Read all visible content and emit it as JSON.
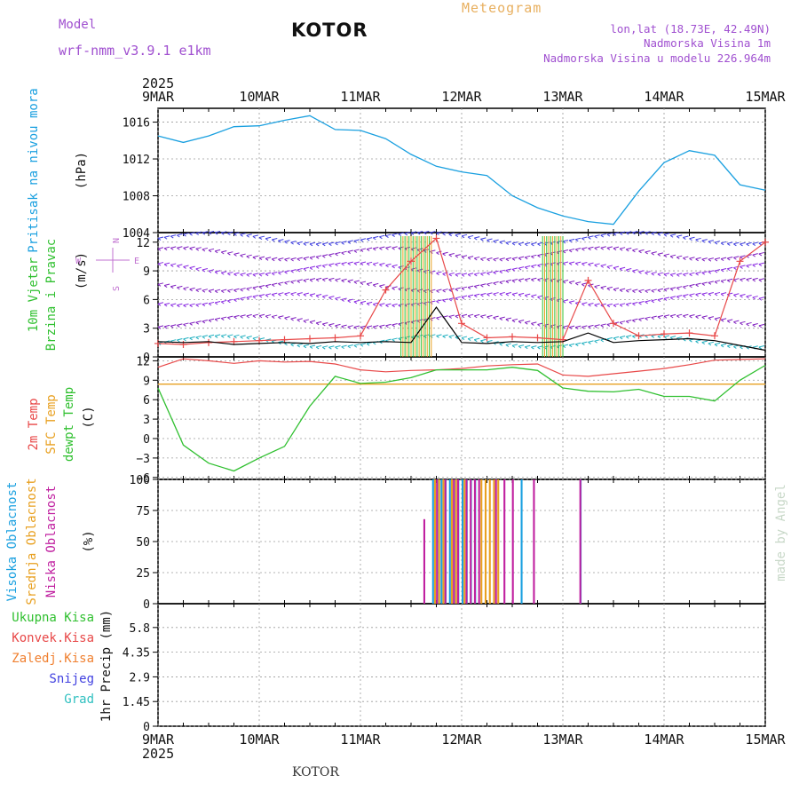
{
  "header": {
    "model_label": "Model",
    "model_name": "wrf-nmm_v3.9.1 e1km",
    "station": "KOTOR",
    "meteogram_label": "Meteogram",
    "lonlat": "lon,lat (18.73E, 42.49N)",
    "altitude": "Nadmorska Visina 1m",
    "model_altitude": "Nadmorska Visina u modelu 226.964m"
  },
  "footer": {
    "station": "KOTOR"
  },
  "watermark": "made by Angel",
  "colors": {
    "pressure": "#1aa0e0",
    "temp2m": "#e84848",
    "sfc": "#e8a020",
    "dewpt": "#30c030",
    "wind_speed": "#000000",
    "gust": "#e84848",
    "high_cloud": "#1aa0e0",
    "mid_cloud": "#e8a020",
    "low_cloud": "#c020a0",
    "total_precip": "#30c030",
    "conv_precip": "#e84848",
    "freezing": "#f08030",
    "snow": "#4040e0",
    "hail": "#30c0c0"
  },
  "chart_data": [
    {
      "type": "line",
      "panel": "pressure",
      "ylabel_lines": [
        "Pritisak na nivou mora",
        "(hPa)"
      ],
      "ylim": [
        1004,
        1017.5
      ],
      "yticks": [
        "1016",
        "1012",
        "1008",
        "1004"
      ],
      "xticks": [
        "9MAR",
        "10MAR",
        "11MAR",
        "12MAR",
        "13MAR",
        "14MAR",
        "15MAR"
      ],
      "xticks_year": "2025",
      "x_days": [
        0,
        0.25,
        0.5,
        0.75,
        1,
        1.25,
        1.5,
        1.75,
        2,
        2.25,
        2.5,
        2.75,
        3,
        3.25,
        3.5,
        3.75,
        4,
        4.25,
        4.5,
        4.75,
        5,
        5.25,
        5.5,
        5.75,
        6
      ],
      "series": [
        {
          "values": [
            1014.5,
            1013.8,
            1014.5,
            1015.5,
            1015.6,
            1016.2,
            1016.7,
            1015.2,
            1015.1,
            1014.2,
            1012.5,
            1011.2,
            1010.6,
            1010.2,
            1008,
            1006.7,
            1005.8,
            1005.2,
            1004.9,
            1008.5,
            1011.6,
            1012.9,
            1012.4,
            1009.2,
            1008.6
          ]
        }
      ]
    },
    {
      "type": "line",
      "panel": "wind",
      "ylabel_lines": [
        "10m Vjetar",
        "Brzina i Pravac",
        "(m/s)"
      ],
      "compass": [
        "N",
        "W",
        "E",
        "S"
      ],
      "ylim": [
        0,
        13
      ],
      "yticks": [
        "12",
        "9",
        "6",
        "3",
        "0"
      ],
      "x_days": [
        0,
        0.25,
        0.5,
        0.75,
        1,
        1.25,
        1.5,
        1.75,
        2,
        2.25,
        2.5,
        2.75,
        3,
        3.25,
        3.5,
        3.75,
        4,
        4.25,
        4.5,
        4.75,
        5,
        5.25,
        5.5,
        5.75,
        6
      ],
      "series": [
        {
          "name": "speed",
          "values": [
            1.6,
            1.5,
            1.6,
            1.3,
            1.4,
            1.5,
            1.4,
            1.6,
            1.5,
            1.6,
            1.5,
            5.2,
            1.5,
            1.4,
            1.6,
            1.5,
            1.6,
            2.5,
            1.5,
            1.7,
            1.8,
            1.9,
            1.7,
            1.2,
            0.7
          ]
        },
        {
          "name": "gust",
          "values": [
            1.4,
            1.3,
            1.5,
            1.6,
            1.7,
            1.8,
            1.9,
            2,
            2.2,
            7,
            10,
            12.4,
            3.5,
            2,
            2.1,
            2,
            1.8,
            8,
            3.5,
            2.2,
            2.4,
            2.5,
            2.2,
            10,
            12
          ]
        }
      ]
    },
    {
      "type": "line",
      "panel": "temperature",
      "ylabel_lines": [
        "2m Temp",
        "SFC Temp",
        "dewpt Temp",
        "(C)"
      ],
      "ylim": [
        -6.3,
        12.6
      ],
      "yticks": [
        "12",
        "9",
        "6",
        "3",
        "0",
        "−3",
        "−6"
      ],
      "sfc_temp": 8.4,
      "x_days": [
        0,
        0.25,
        0.5,
        0.75,
        1,
        1.25,
        1.5,
        1.75,
        2,
        2.25,
        2.5,
        2.75,
        3,
        3.25,
        3.5,
        3.75,
        4,
        4.25,
        4.5,
        4.75,
        5,
        5.25,
        5.5,
        5.75,
        6
      ],
      "series": [
        {
          "name": "2m",
          "values": [
            11,
            12.3,
            12,
            11.6,
            12,
            11.8,
            11.9,
            11.5,
            10.6,
            10.3,
            10.5,
            10.6,
            10.8,
            11.2,
            11.4,
            11.5,
            9.8,
            9.6,
            10,
            10.4,
            10.8,
            11.4,
            12.1,
            12.2,
            12.3
          ]
        },
        {
          "name": "dewpt",
          "values": [
            7.8,
            -1,
            -3.8,
            -5,
            -3,
            -1.2,
            5,
            9.6,
            8.5,
            8.7,
            9.4,
            10.6,
            10.6,
            10.6,
            11,
            10.5,
            7.8,
            7.3,
            7.2,
            7.6,
            6.5,
            6.5,
            5.8,
            9,
            11.3
          ]
        }
      ]
    },
    {
      "type": "bar",
      "panel": "cloud",
      "ylabel_lines": [
        "Visoka Oblacnost",
        "Srednja Oblacnost",
        "Niska Oblacnost",
        "(%)"
      ],
      "ylim": [
        0,
        100
      ],
      "yticks": [
        "100",
        "75",
        "50",
        "25",
        "0"
      ],
      "step_hours": 2,
      "series": [
        {
          "name": "high",
          "values": [
            0,
            0,
            0,
            0,
            0,
            0,
            0,
            0,
            0,
            0,
            0,
            0,
            0,
            0,
            0,
            0,
            0,
            0,
            0,
            0,
            0,
            0,
            0,
            0,
            0,
            0,
            0,
            0,
            0,
            0,
            0,
            0,
            0,
            0,
            0,
            0,
            0,
            0,
            0,
            0,
            0,
            0,
            0,
            0,
            0,
            0,
            0,
            0,
            0,
            0,
            0,
            0,
            0,
            0,
            0,
            0,
            0,
            0,
            0,
            0,
            0,
            0,
            0,
            0,
            0,
            100,
            100,
            100,
            100,
            100,
            100,
            100,
            100,
            100,
            100,
            100,
            0,
            0,
            0,
            0,
            0,
            0,
            0,
            0,
            0,
            0,
            100,
            0,
            0,
            0,
            0,
            0,
            0,
            0,
            0,
            0,
            0,
            0,
            0,
            0,
            100,
            0,
            0,
            0,
            0,
            0,
            0,
            0,
            0,
            0,
            0,
            0,
            0,
            0,
            0,
            0,
            0,
            0,
            0,
            0,
            0,
            0,
            0,
            0,
            0,
            0,
            0,
            0,
            0,
            0,
            0,
            0,
            0,
            0,
            0,
            0,
            0,
            0,
            0,
            0,
            0,
            0,
            0,
            0,
            0,
            0,
            0,
            0,
            0,
            0,
            0,
            0,
            0,
            0,
            0,
            0,
            0,
            0,
            0,
            0,
            0,
            0,
            0,
            0,
            0,
            0,
            0,
            0,
            0,
            0,
            0,
            0
          ]
        },
        {
          "name": "mid",
          "values": [
            0,
            0,
            0,
            0,
            0,
            0,
            0,
            0,
            0,
            0,
            0,
            0,
            0,
            0,
            0,
            0,
            0,
            0,
            0,
            0,
            0,
            0,
            0,
            0,
            0,
            0,
            0,
            0,
            0,
            0,
            0,
            0,
            0,
            0,
            0,
            0,
            0,
            0,
            0,
            0,
            0,
            0,
            0,
            0,
            0,
            0,
            0,
            0,
            0,
            0,
            0,
            0,
            0,
            0,
            0,
            0,
            0,
            0,
            0,
            0,
            0,
            0,
            0,
            0,
            0,
            100,
            100,
            100,
            0,
            100,
            100,
            0,
            100,
            0,
            0,
            0,
            100,
            100,
            100,
            100,
            100,
            0,
            0,
            0,
            0,
            0,
            0,
            0,
            0,
            0,
            0,
            0,
            0,
            0,
            0,
            0,
            0,
            0,
            0,
            0,
            0,
            0,
            0,
            0,
            0,
            0,
            0,
            0,
            0,
            0,
            0,
            0,
            0,
            0,
            0,
            0,
            0,
            0,
            0,
            0,
            0,
            0,
            0,
            0,
            0,
            0,
            0,
            0,
            0,
            0,
            0,
            0,
            0,
            0,
            0,
            0,
            0,
            0,
            0,
            0,
            0,
            0,
            0,
            0,
            0,
            0,
            0,
            0,
            0,
            0,
            0,
            0,
            0,
            0,
            0,
            0,
            0,
            0,
            0,
            0,
            0,
            0,
            0,
            0,
            0,
            0,
            0,
            0,
            0,
            0,
            0,
            0
          ]
        },
        {
          "name": "low",
          "values": [
            0,
            0,
            0,
            0,
            0,
            0,
            0,
            0,
            0,
            0,
            0,
            0,
            0,
            0,
            0,
            0,
            0,
            0,
            0,
            0,
            0,
            0,
            0,
            0,
            0,
            0,
            0,
            0,
            0,
            0,
            0,
            0,
            0,
            0,
            0,
            0,
            0,
            0,
            0,
            0,
            0,
            0,
            0,
            0,
            0,
            0,
            0,
            0,
            0,
            0,
            0,
            0,
            0,
            0,
            0,
            0,
            0,
            0,
            0,
            0,
            0,
            0,
            68,
            0,
            0,
            100,
            0,
            100,
            0,
            100,
            100,
            0,
            100,
            100,
            100,
            100,
            0,
            0,
            0,
            100,
            0,
            100,
            0,
            100,
            0,
            0,
            0,
            0,
            100,
            0,
            0,
            0,
            0,
            0,
            0,
            0,
            0,
            0,
            0,
            100,
            0,
            0,
            0,
            0,
            0,
            0,
            0,
            0,
            0,
            0,
            0,
            0,
            0,
            0,
            0,
            0,
            0,
            0,
            0,
            0,
            0,
            0,
            0,
            0,
            0,
            0,
            0,
            0,
            0,
            0,
            0,
            0,
            0,
            0,
            0,
            0,
            0,
            0,
            0,
            0,
            0,
            0,
            0,
            0,
            0,
            0,
            0,
            0,
            0,
            0,
            0,
            0,
            0,
            0,
            0,
            0,
            0,
            0,
            0,
            0,
            0,
            0,
            0,
            0,
            0,
            0,
            0,
            0,
            0,
            0
          ]
        }
      ]
    },
    {
      "type": "bar",
      "panel": "precip",
      "ylabel_lines": [
        "1hr Precip (mm)"
      ],
      "legend": [
        "Ukupna Kisa",
        "Konvek.Kisa",
        "Zaledj.Kisa",
        "Snijeg",
        "Grad"
      ],
      "ylim": [
        0,
        7.2
      ],
      "yticks": [
        "5.8",
        "4.35",
        "2.9",
        "1.45",
        "0"
      ],
      "step_hours": 2,
      "series": [
        {
          "name": "total",
          "values": [
            0,
            0,
            0,
            0,
            0,
            0,
            0,
            0,
            0,
            0,
            0,
            0,
            0,
            0,
            0,
            0,
            0,
            0,
            0,
            0,
            0,
            0,
            0,
            0,
            0,
            0,
            0,
            0,
            0,
            0,
            0,
            0,
            0,
            0,
            0,
            0,
            0,
            0,
            0,
            0,
            0,
            0,
            0,
            0,
            0,
            0,
            0,
            0,
            0,
            0,
            0,
            0,
            0,
            0,
            0,
            0,
            0,
            0,
            0,
            0,
            0,
            0,
            0,
            0,
            0,
            0,
            0,
            0,
            0,
            0,
            0,
            0,
            0,
            0,
            0,
            0,
            0,
            0,
            0,
            0,
            0,
            0,
            0,
            0,
            0,
            0,
            0,
            0,
            0,
            0,
            0,
            0,
            0,
            0,
            0,
            0,
            0,
            0,
            0,
            0,
            0,
            0,
            0,
            0,
            0,
            0,
            0,
            0,
            0,
            0,
            0,
            0,
            0,
            0,
            0,
            0,
            0,
            0,
            0,
            0,
            0,
            0,
            0,
            0,
            0,
            0,
            0,
            0,
            0,
            0,
            0,
            0,
            0,
            0,
            0,
            0,
            0,
            0,
            0,
            0,
            0,
            0,
            0,
            0,
            0,
            0,
            0,
            0,
            0,
            0,
            0,
            0,
            0,
            0,
            0,
            0,
            0,
            0,
            0,
            0,
            0,
            0,
            0,
            0,
            0,
            0,
            0,
            0,
            0,
            0,
            0,
            0
          ]
        },
        {
          "name": "conv",
          "values": [
            0,
            0,
            0,
            0,
            0,
            0,
            0,
            0,
            0,
            0,
            0,
            0,
            0,
            0,
            0,
            0,
            0,
            0,
            0,
            0,
            0,
            0,
            0,
            0,
            0,
            0,
            0,
            0,
            0,
            0,
            0,
            0,
            0,
            0,
            0,
            0,
            0,
            0,
            0,
            0,
            0,
            0,
            0,
            0,
            0,
            0,
            0,
            0,
            0,
            0,
            0,
            0,
            0,
            0,
            0,
            0,
            0,
            0,
            0,
            0,
            0,
            0,
            0,
            0,
            0,
            0,
            0,
            0,
            0,
            0,
            0,
            0,
            0,
            0,
            0,
            0,
            0,
            0,
            0,
            0,
            0,
            0,
            0,
            0,
            0,
            0,
            0,
            0,
            0,
            0,
            0,
            0,
            0,
            0,
            0,
            0,
            0,
            0,
            0,
            0,
            0,
            0,
            0,
            0,
            0,
            0,
            0,
            0,
            0,
            0,
            0,
            0,
            0,
            0,
            0,
            0,
            0,
            0,
            0,
            0,
            0,
            0,
            0,
            0,
            0,
            0,
            0,
            0,
            0,
            0,
            0,
            0,
            0,
            0,
            0,
            0,
            0,
            0,
            0,
            0,
            0,
            0,
            0,
            0,
            0,
            0,
            0,
            0,
            0,
            0,
            0,
            0,
            0,
            0,
            0,
            0,
            0,
            0,
            0,
            0,
            0,
            0,
            0,
            0,
            0,
            0,
            0,
            0,
            0,
            0,
            0,
            0
          ]
        }
      ]
    }
  ]
}
